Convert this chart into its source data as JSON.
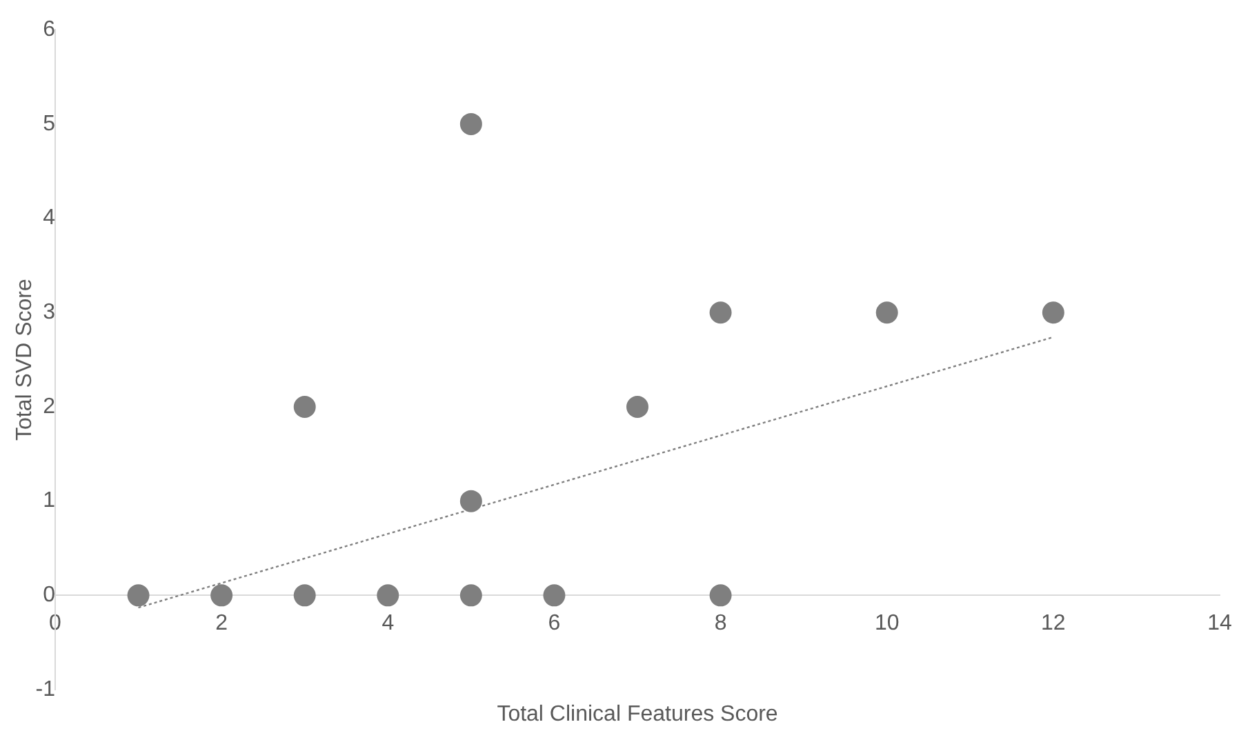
{
  "chart_data": {
    "type": "scatter",
    "xlabel": "Total Clinical Features Score",
    "ylabel": "Total SVD Score",
    "series": [
      {
        "color": "#7f7f7f",
        "marker": "circle",
        "x": [
          1,
          2,
          3,
          3,
          4,
          5,
          5,
          5,
          6,
          7,
          8,
          8,
          10,
          12
        ],
        "values": [
          0,
          0,
          0,
          2,
          0,
          0,
          1,
          5,
          0,
          2,
          0,
          3,
          3,
          3
        ]
      },
      {
        "type": "line",
        "color": "#7f7f7f",
        "marker": "none",
        "line_style": "dotted",
        "x": [
          1,
          12
        ],
        "values": [
          -0.13,
          2.74
        ]
      }
    ],
    "xlim": [
      0,
      14
    ],
    "xticks": [
      0,
      2,
      4,
      6,
      8,
      10,
      12,
      14
    ],
    "ylim": [
      -1,
      6
    ],
    "yticks": [
      -1,
      0,
      1,
      2,
      3,
      4,
      5,
      6
    ],
    "grid": false,
    "legend": false
  }
}
